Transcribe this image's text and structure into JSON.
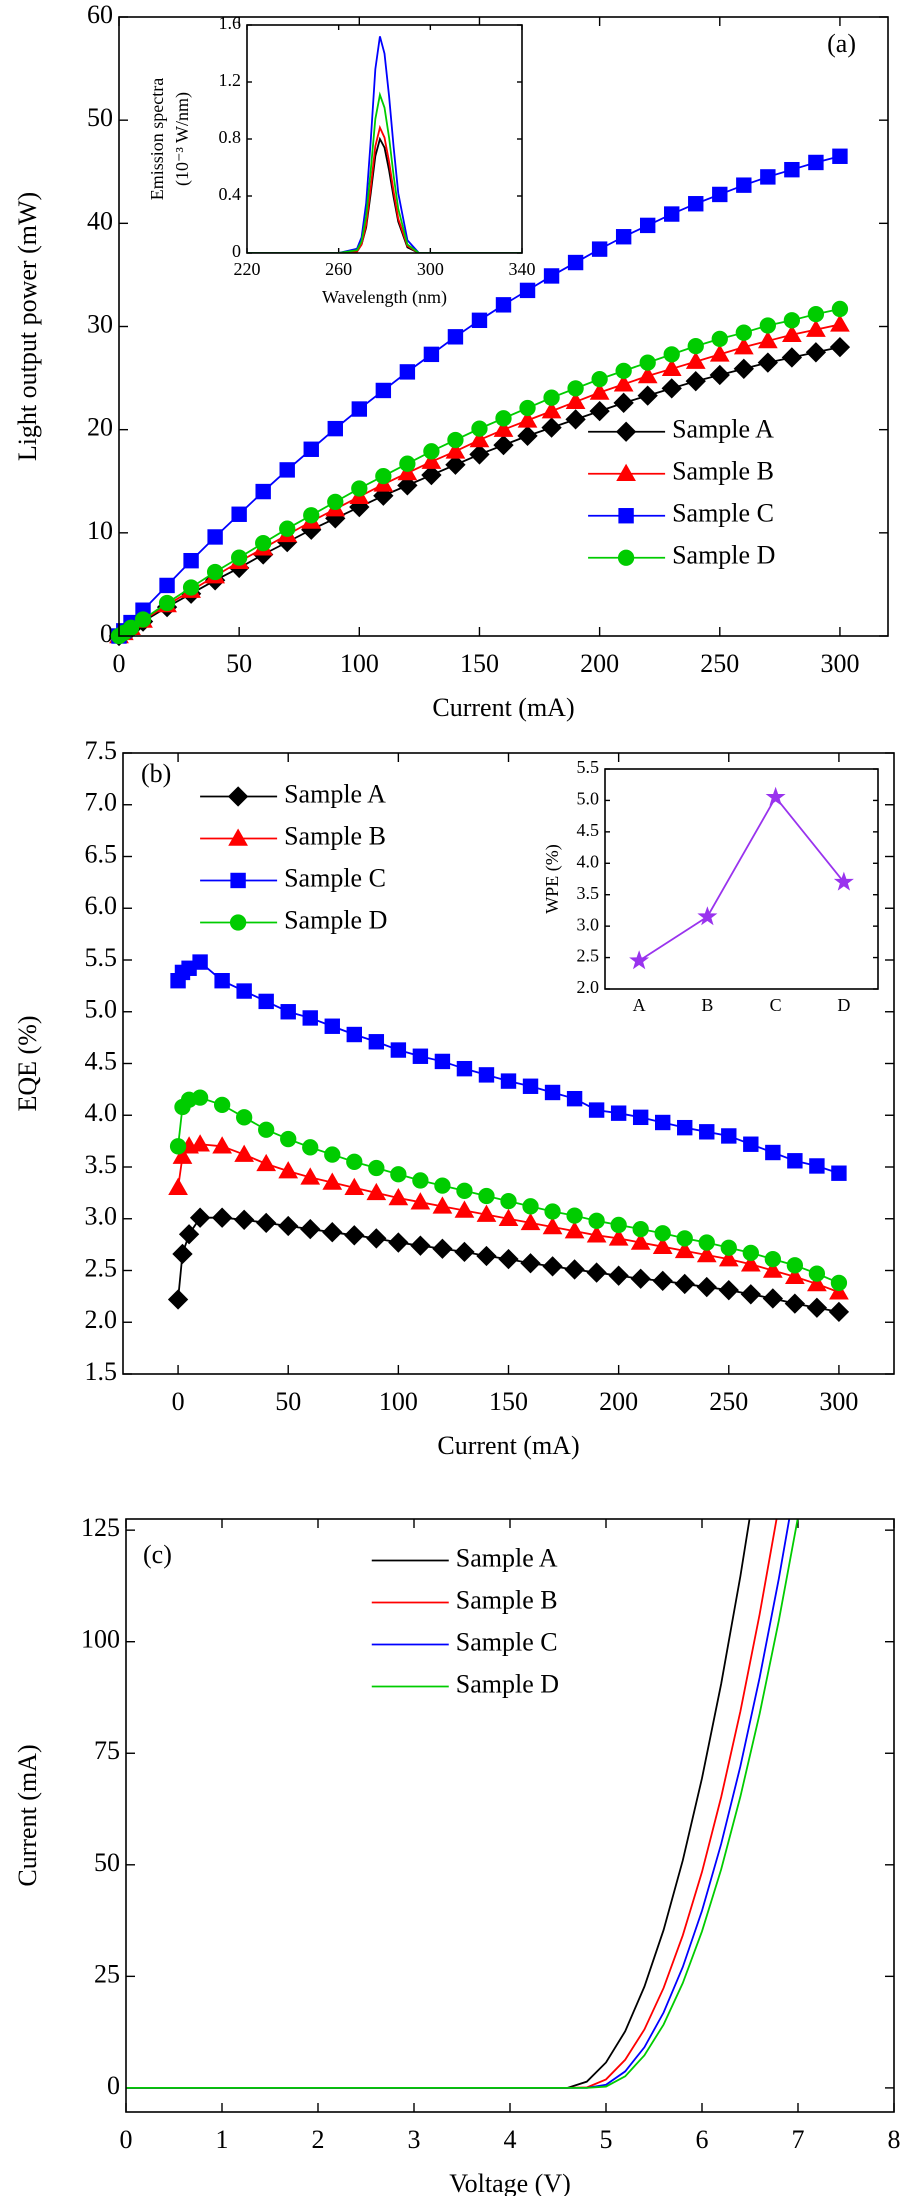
{
  "chart_data": [
    {
      "type": "line",
      "panel_label": "(a)",
      "xlabel": "Current (mA)",
      "ylabel": "Light output power (mW)",
      "x": [
        0,
        2,
        5,
        10,
        20,
        30,
        40,
        50,
        60,
        70,
        80,
        90,
        100,
        110,
        120,
        130,
        140,
        150,
        160,
        170,
        180,
        190,
        200,
        210,
        220,
        230,
        240,
        250,
        260,
        270,
        280,
        290,
        300
      ],
      "xlim": [
        0,
        320
      ],
      "ylim": [
        0,
        60
      ],
      "xticks": [
        0,
        50,
        100,
        150,
        200,
        250,
        300
      ],
      "yticks": [
        0,
        10,
        20,
        30,
        40,
        50,
        60
      ],
      "legend": "center right",
      "series": [
        {
          "name": "Sample A",
          "color": "#000000",
          "marker": "diamond",
          "values": [
            0,
            0.3,
            0.7,
            1.4,
            2.8,
            4.1,
            5.4,
            6.6,
            7.9,
            9.1,
            10.3,
            11.4,
            12.5,
            13.6,
            14.6,
            15.6,
            16.6,
            17.6,
            18.5,
            19.4,
            20.2,
            21.0,
            21.8,
            22.6,
            23.3,
            24.0,
            24.7,
            25.3,
            25.9,
            26.5,
            27.0,
            27.5,
            28.0
          ]
        },
        {
          "name": "Sample B",
          "color": "#ff0000",
          "marker": "triangle",
          "values": [
            0,
            0.3,
            0.8,
            1.5,
            3.0,
            4.4,
            5.8,
            7.2,
            8.5,
            9.8,
            11.1,
            12.3,
            13.5,
            14.7,
            15.8,
            16.9,
            17.9,
            19.0,
            20.0,
            20.9,
            21.8,
            22.7,
            23.6,
            24.4,
            25.2,
            25.9,
            26.6,
            27.3,
            28.0,
            28.6,
            29.2,
            29.7,
            30.2
          ]
        },
        {
          "name": "Sample C",
          "color": "#0000ff",
          "marker": "square",
          "values": [
            0,
            0.5,
            1.3,
            2.5,
            4.9,
            7.3,
            9.6,
            11.8,
            14.0,
            16.1,
            18.1,
            20.1,
            22.0,
            23.8,
            25.6,
            27.3,
            29.0,
            30.6,
            32.1,
            33.5,
            34.9,
            36.2,
            37.5,
            38.7,
            39.8,
            40.9,
            41.9,
            42.8,
            43.7,
            44.5,
            45.2,
            45.9,
            46.5
          ]
        },
        {
          "name": "Sample D",
          "color": "#00cc00",
          "marker": "circle",
          "values": [
            0,
            0.3,
            0.8,
            1.6,
            3.2,
            4.7,
            6.2,
            7.6,
            9.0,
            10.4,
            11.7,
            13.0,
            14.3,
            15.5,
            16.7,
            17.9,
            19.0,
            20.1,
            21.1,
            22.1,
            23.1,
            24.0,
            24.9,
            25.7,
            26.5,
            27.3,
            28.1,
            28.8,
            29.4,
            30.1,
            30.6,
            31.2,
            31.7
          ]
        }
      ]
    },
    {
      "type": "line",
      "xlabel": "Wavelength (nm)",
      "ylabel": [
        "Emission spectra",
        "(10⁻³ W/nm)"
      ],
      "x": [
        220,
        250,
        260,
        268,
        270,
        272,
        274,
        276,
        278,
        280,
        282,
        284,
        286,
        290,
        295,
        300,
        310,
        340
      ],
      "xlim": [
        220,
        340
      ],
      "ylim": [
        0,
        1.6
      ],
      "xticks": [
        220,
        260,
        300,
        340
      ],
      "yticks": [
        0,
        0.4,
        0.8,
        1.2,
        1.6
      ],
      "series": [
        {
          "color": "#000000",
          "values": [
            0,
            0,
            0,
            0.01,
            0.06,
            0.18,
            0.42,
            0.68,
            0.8,
            0.74,
            0.58,
            0.39,
            0.22,
            0.04,
            0,
            0,
            0,
            0
          ]
        },
        {
          "color": "#ff0000",
          "values": [
            0,
            0,
            0,
            0.01,
            0.06,
            0.2,
            0.46,
            0.75,
            0.88,
            0.81,
            0.64,
            0.43,
            0.24,
            0.05,
            0,
            0,
            0,
            0
          ]
        },
        {
          "color": "#0000ff",
          "values": [
            0,
            0,
            0,
            0.03,
            0.11,
            0.35,
            0.79,
            1.29,
            1.52,
            1.4,
            1.1,
            0.74,
            0.42,
            0.09,
            0,
            0,
            0,
            0
          ]
        },
        {
          "color": "#00cc00",
          "values": [
            0,
            0,
            0,
            0.02,
            0.08,
            0.26,
            0.58,
            0.94,
            1.11,
            1.02,
            0.81,
            0.54,
            0.31,
            0.06,
            0,
            0,
            0,
            0
          ]
        }
      ]
    },
    {
      "type": "line",
      "panel_label": "(b)",
      "xlabel": "Current (mA)",
      "ylabel": "EQE (%)",
      "x": [
        0,
        2,
        5,
        10,
        20,
        30,
        40,
        50,
        60,
        70,
        80,
        90,
        100,
        110,
        120,
        130,
        140,
        150,
        160,
        170,
        180,
        190,
        200,
        210,
        220,
        230,
        240,
        250,
        260,
        270,
        280,
        290,
        300
      ],
      "xlim": [
        -25,
        325
      ],
      "ylim": [
        1.5,
        7.5
      ],
      "xticks": [
        0,
        50,
        100,
        150,
        200,
        250,
        300
      ],
      "yticks": [
        1.5,
        {
          "value": 2,
          "label": "2.0"
        },
        2.5,
        {
          "value": 3,
          "label": "3.0"
        },
        3.5,
        {
          "value": 4,
          "label": "4.0"
        },
        4.5,
        {
          "value": 5,
          "label": "5.0"
        },
        5.5,
        {
          "value": 6,
          "label": "6.0"
        },
        6.5,
        {
          "value": 7,
          "label": "7.0"
        },
        7.5
      ],
      "legend": "upper left",
      "series": [
        {
          "name": "Sample A",
          "color": "#000000",
          "marker": "diamond",
          "values": [
            2.22,
            2.66,
            2.85,
            3.01,
            3.01,
            2.99,
            2.96,
            2.93,
            2.9,
            2.87,
            2.84,
            2.81,
            2.77,
            2.74,
            2.71,
            2.68,
            2.64,
            2.61,
            2.57,
            2.54,
            2.51,
            2.48,
            2.45,
            2.42,
            2.4,
            2.37,
            2.34,
            2.31,
            2.27,
            2.23,
            2.18,
            2.14,
            2.1
          ]
        },
        {
          "name": "Sample B",
          "color": "#ff0000",
          "marker": "triangle",
          "values": [
            3.3,
            3.6,
            3.7,
            3.72,
            3.7,
            3.62,
            3.53,
            3.46,
            3.4,
            3.35,
            3.3,
            3.25,
            3.2,
            3.16,
            3.12,
            3.08,
            3.04,
            3.0,
            2.96,
            2.92,
            2.88,
            2.84,
            2.81,
            2.77,
            2.73,
            2.69,
            2.65,
            2.61,
            2.56,
            2.5,
            2.44,
            2.37,
            2.29
          ]
        },
        {
          "name": "Sample C",
          "color": "#0000ff",
          "marker": "square",
          "values": [
            5.3,
            5.38,
            5.42,
            5.48,
            5.3,
            5.2,
            5.1,
            5.0,
            4.94,
            4.86,
            4.78,
            4.71,
            4.63,
            4.57,
            4.52,
            4.45,
            4.39,
            4.33,
            4.28,
            4.22,
            4.16,
            4.05,
            4.02,
            3.98,
            3.93,
            3.88,
            3.84,
            3.8,
            3.72,
            3.64,
            3.56,
            3.51,
            3.44
          ]
        },
        {
          "name": "Sample D",
          "color": "#00cc00",
          "marker": "circle",
          "values": [
            3.7,
            4.08,
            4.15,
            4.17,
            4.1,
            3.98,
            3.86,
            3.77,
            3.69,
            3.62,
            3.55,
            3.49,
            3.43,
            3.37,
            3.32,
            3.27,
            3.22,
            3.17,
            3.12,
            3.07,
            3.03,
            2.98,
            2.94,
            2.9,
            2.86,
            2.81,
            2.77,
            2.72,
            2.67,
            2.61,
            2.55,
            2.47,
            2.38
          ]
        }
      ]
    },
    {
      "type": "line",
      "ylabel": "WPE (%)",
      "categories": [
        "A",
        "B",
        "C",
        "D"
      ],
      "values": [
        2.45,
        3.15,
        5.05,
        3.7
      ],
      "color": "#9933ee",
      "marker": "star",
      "ylim": [
        2,
        5.5
      ],
      "yticks": [
        {
          "value": 2,
          "label": "2.0"
        },
        2.5,
        {
          "value": 3,
          "label": "3.0"
        },
        3.5,
        {
          "value": 4,
          "label": "4.0"
        },
        4.5,
        {
          "value": 5,
          "label": "5.0"
        },
        5.5
      ]
    },
    {
      "type": "line",
      "panel_label": "(c)",
      "xlabel": "Voltage (V)",
      "ylabel": "Current (mA)",
      "x": [
        0,
        1,
        2,
        3,
        4,
        4.5,
        4.6,
        4.8,
        5,
        5.2,
        5.4,
        5.6,
        5.8,
        6,
        6.2,
        6.4,
        6.6,
        6.8,
        7
      ],
      "xlim": [
        0,
        8
      ],
      "ylim": [
        -5.4,
        127.5
      ],
      "xticks": [
        0,
        1,
        2,
        3,
        4,
        5,
        6,
        7,
        8
      ],
      "yticks": [
        0,
        25,
        50,
        75,
        100,
        125
      ],
      "legend": "upper center",
      "series": [
        {
          "name": "Sample A",
          "color": "#000000",
          "values": [
            0,
            0,
            0,
            0,
            0,
            0,
            0,
            1.4,
            5.7,
            12.7,
            22.7,
            35.4,
            51.0,
            69.4,
            90.6,
            114.7,
            141.6,
            null,
            null
          ]
        },
        {
          "name": "Sample B",
          "color": "#ff0000",
          "values": [
            0,
            0,
            0,
            0,
            0,
            0,
            0,
            0.1,
            1.9,
            6.3,
            13.1,
            22.4,
            34.2,
            48.4,
            65.2,
            84.4,
            106.1,
            130.3,
            null
          ]
        },
        {
          "name": "Sample C",
          "color": "#0000ff",
          "values": [
            0,
            0,
            0,
            0,
            0,
            0,
            0,
            0,
            0.7,
            3.7,
            9.1,
            16.9,
            27.1,
            39.7,
            54.7,
            72.1,
            91.9,
            114.1,
            138.7
          ]
        },
        {
          "name": "Sample D",
          "color": "#00cc00",
          "values": [
            0,
            0,
            0,
            0,
            0,
            0,
            0,
            0,
            0.3,
            2.6,
            7.3,
            14.2,
            23.5,
            35.1,
            49.0,
            65.3,
            83.8,
            104.7,
            127.9
          ]
        }
      ]
    }
  ]
}
